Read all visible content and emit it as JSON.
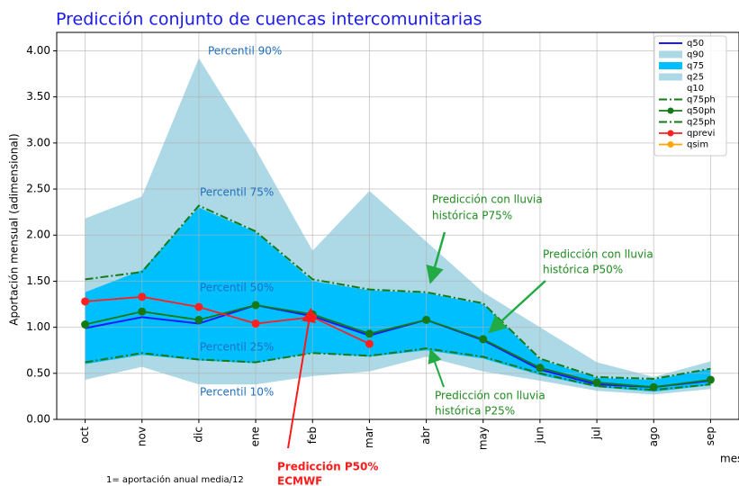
{
  "chart_data": {
    "type": "line",
    "title": "Predicción conjunto de cuencas intercomunitarias",
    "y_label": "Aportación mensual (adimensional)",
    "x_label": "mes",
    "footnote": "1= aportación anual media/12",
    "categories": [
      "oct",
      "nov",
      "dic",
      "ene",
      "feb",
      "mar",
      "abr",
      "may",
      "jun",
      "jul",
      "ago",
      "sep"
    ],
    "ylim": [
      0,
      4.2
    ],
    "yticks": [
      {
        "value": 0,
        "label": "0.00"
      },
      {
        "value": 0.5,
        "label": "0.50"
      },
      {
        "value": 1,
        "label": "1.00"
      },
      {
        "value": 1.5,
        "label": "1.50"
      },
      {
        "value": 2,
        "label": "2.00"
      },
      {
        "value": 2.5,
        "label": "2.50"
      },
      {
        "value": 3,
        "label": "3.00"
      },
      {
        "value": 3.5,
        "label": "3.50"
      },
      {
        "value": 4,
        "label": "4.00"
      }
    ],
    "grid": true,
    "legend": "upper right",
    "series": [
      {
        "name": "q50",
        "color": "#1a1aff",
        "style": "line",
        "values": [
          0.99,
          1.11,
          1.04,
          1.24,
          1.12,
          0.91,
          1.08,
          0.86,
          0.54,
          0.38,
          0.35,
          0.42
        ]
      },
      {
        "name": "q90",
        "color": "#add8e6",
        "style": "area",
        "values": [
          2.18,
          2.42,
          3.92,
          2.93,
          1.83,
          2.48,
          1.93,
          1.38,
          1.0,
          0.62,
          0.46,
          0.63
        ]
      },
      {
        "name": "q75",
        "color": "#00bfff",
        "style": "area",
        "values": [
          1.38,
          1.62,
          2.3,
          2.03,
          1.5,
          1.4,
          1.37,
          1.25,
          0.65,
          0.45,
          0.43,
          0.55
        ]
      },
      {
        "name": "q25",
        "color": "#add8e6",
        "style": "area",
        "values": [
          0.6,
          0.7,
          0.64,
          0.61,
          0.72,
          0.68,
          0.75,
          0.66,
          0.48,
          0.35,
          0.3,
          0.37
        ]
      },
      {
        "name": "q10",
        "color": "#ffffff",
        "style": "area",
        "values": [
          0.43,
          0.57,
          0.38,
          0.38,
          0.47,
          0.52,
          0.68,
          0.52,
          0.42,
          0.31,
          0.27,
          0.33
        ]
      },
      {
        "name": "q75ph",
        "color": "#157a15",
        "style": "dashdot",
        "values": [
          1.52,
          1.6,
          2.32,
          2.04,
          1.52,
          1.41,
          1.38,
          1.26,
          0.66,
          0.46,
          0.44,
          0.55
        ]
      },
      {
        "name": "q50ph",
        "color": "#157a15",
        "style": "markers",
        "values": [
          1.03,
          1.17,
          1.08,
          1.24,
          1.14,
          0.93,
          1.08,
          0.87,
          0.56,
          0.4,
          0.35,
          0.43
        ]
      },
      {
        "name": "q25ph",
        "color": "#157a15",
        "style": "dashdot",
        "values": [
          0.62,
          0.72,
          0.65,
          0.62,
          0.72,
          0.69,
          0.77,
          0.68,
          0.5,
          0.36,
          0.32,
          0.38
        ]
      },
      {
        "name": "qprevi",
        "color": "#ff2020",
        "style": "markers",
        "values": [
          1.28,
          1.33,
          1.22,
          1.04,
          1.11,
          0.82,
          null,
          null,
          null,
          null,
          null,
          null
        ]
      },
      {
        "name": "qsim",
        "color": "#ffa500",
        "style": "markers",
        "values": [
          null,
          null,
          null,
          null,
          null,
          null,
          null,
          null,
          null,
          null,
          null,
          null
        ]
      }
    ],
    "annotations": [
      {
        "lines": [
          "Percentil 90%"
        ]
      },
      {
        "lines": [
          "Percentil 75%"
        ]
      },
      {
        "lines": [
          "Percentil 50%"
        ]
      },
      {
        "lines": [
          "Percentil 25%"
        ]
      },
      {
        "lines": [
          "Percentil 10%"
        ]
      },
      {
        "lines": [
          "Predicción con lluvia",
          "histórica P75%"
        ]
      },
      {
        "lines": [
          "Predicción con lluvia",
          "histórica P50%"
        ]
      },
      {
        "lines": [
          "Predicción con lluvia",
          "histórica P25%"
        ]
      },
      {
        "lines": [
          "Predicción P50%",
          "ECMWF"
        ]
      }
    ]
  }
}
